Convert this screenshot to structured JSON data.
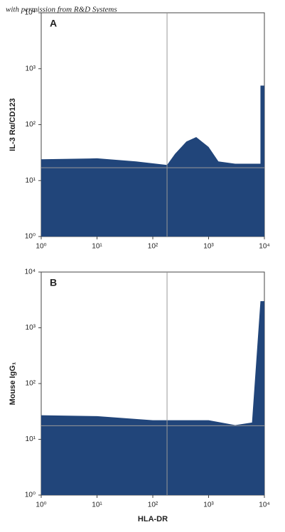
{
  "watermark": "with permission from R&D Systems",
  "chart_data": [
    {
      "type": "density",
      "panel_label": "A",
      "ylabel": "IL-3 Rα/CD123",
      "log_x": true,
      "log_y": true,
      "color": "#21457a",
      "gate_color": "#999999",
      "xlim": [
        1,
        10000
      ],
      "ylim": [
        1,
        10000
      ],
      "xticks": [
        {
          "value": 1,
          "label": "10⁰"
        },
        {
          "value": 10,
          "label": "10¹"
        },
        {
          "value": 100,
          "label": "10²"
        },
        {
          "value": 1000,
          "label": "10³"
        },
        {
          "value": 10000,
          "label": "10⁴"
        }
      ],
      "yticks": [
        {
          "value": 1,
          "label": "10⁰"
        },
        {
          "value": 10,
          "label": "10¹"
        },
        {
          "value": 100,
          "label": "10²"
        },
        {
          "value": 1000,
          "label": "10³"
        },
        {
          "value": 10000,
          "label": "10⁴"
        }
      ],
      "gate_x": 180,
      "gate_y": 17,
      "regions": [
        {
          "x": [
            1,
            1,
            10,
            50,
            180,
            250,
            400,
            600,
            1000,
            1500,
            3000,
            10000,
            10000
          ],
          "y": [
            1,
            24,
            25,
            22,
            19,
            30,
            50,
            60,
            40,
            22,
            20,
            20,
            1
          ]
        },
        {
          "x": [
            8500,
            8500,
            10000,
            10000
          ],
          "y": [
            1,
            500,
            500,
            1
          ]
        }
      ]
    },
    {
      "type": "density",
      "panel_label": "B",
      "xlabel": "HLA-DR",
      "ylabel": "Mouse IgG₁",
      "log_x": true,
      "log_y": true,
      "color": "#21457a",
      "gate_color": "#999999",
      "xlim": [
        1,
        10000
      ],
      "ylim": [
        1,
        10000
      ],
      "xticks": [
        {
          "value": 1,
          "label": "10⁰"
        },
        {
          "value": 10,
          "label": "10¹"
        },
        {
          "value": 100,
          "label": "10²"
        },
        {
          "value": 1000,
          "label": "10³"
        },
        {
          "value": 10000,
          "label": "10⁴"
        }
      ],
      "yticks": [
        {
          "value": 1,
          "label": "10⁰"
        },
        {
          "value": 10,
          "label": "10¹"
        },
        {
          "value": 100,
          "label": "10²"
        },
        {
          "value": 1000,
          "label": "10³"
        },
        {
          "value": 10000,
          "label": "10⁴"
        }
      ],
      "gate_x": 180,
      "gate_y": 17.5,
      "regions": [
        {
          "x": [
            1,
            1,
            10,
            100,
            1000,
            3000,
            6000,
            8500,
            10000,
            10000
          ],
          "y": [
            1,
            27,
            26,
            22,
            22,
            18,
            20,
            3000,
            3000,
            1
          ]
        }
      ]
    }
  ]
}
